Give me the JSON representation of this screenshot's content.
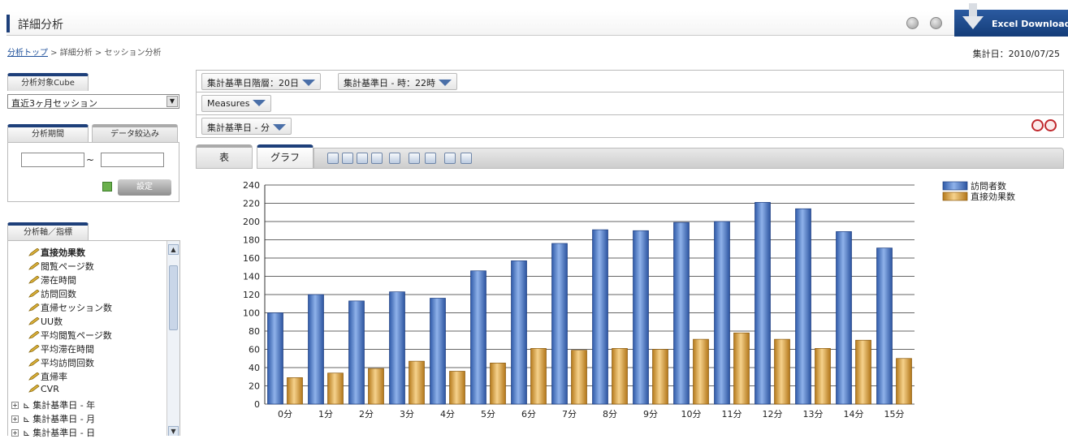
{
  "header": {
    "title": "詳細分析",
    "excel_label": "Excel Download",
    "icons": [
      "gear-icon",
      "help-icon"
    ]
  },
  "breadcrumb": {
    "top_link": "分析トップ",
    "rest": " > 詳細分析 > セッション分析"
  },
  "aggregate_date": "集計日：2010/07/25",
  "left": {
    "cube_tab": "分析対象Cube",
    "cube_value": "直近3ヶ月セッション",
    "period_tab": "分析期間",
    "filter_tab": "データ絞込み",
    "date_sep": "~",
    "set_button": "設定",
    "axis_tab": "分析軸／指標",
    "measures": [
      "直接効果数",
      "閲覧ページ数",
      "滞在時間",
      "訪問回数",
      "直帰セッション数",
      "UU数",
      "平均閲覧ページ数",
      "平均滞在時間",
      "平均訪問回数",
      "直帰率",
      "CVR"
    ],
    "dimensions": [
      "集計基準日 - 年",
      "集計基準日 - 月",
      "集計基準日 - 日"
    ]
  },
  "filters": {
    "chip1": "集計基準日階層：20日",
    "chip2": "集計基準日 - 時：22時",
    "measures_chip": "Measures",
    "row_chip": "集計基準日 - 分"
  },
  "view_tabs": {
    "table": "表",
    "graph": "グラフ"
  },
  "colors": {
    "series1": "#4a78c4",
    "series2": "#e0a84a",
    "accent": "#1d3f7a"
  },
  "chart_data": {
    "type": "bar",
    "categories": [
      "0分",
      "1分",
      "2分",
      "3分",
      "4分",
      "5分",
      "6分",
      "7分",
      "8分",
      "9分",
      "10分",
      "11分",
      "12分",
      "13分",
      "14分",
      "15分"
    ],
    "series": [
      {
        "name": "訪問者数",
        "values": [
          100,
          120,
          113,
          123,
          116,
          146,
          157,
          176,
          191,
          190,
          199,
          200,
          221,
          214,
          189,
          171
        ]
      },
      {
        "name": "直接効果数",
        "values": [
          29,
          34,
          39,
          47,
          36,
          45,
          61,
          59,
          61,
          60,
          71,
          78,
          71,
          61,
          70,
          50
        ]
      }
    ],
    "ylim": [
      0,
      240
    ],
    "yticks": [
      0,
      20,
      40,
      60,
      80,
      100,
      120,
      140,
      160,
      180,
      200,
      220,
      240
    ],
    "grid": true,
    "legend": "top-right"
  }
}
